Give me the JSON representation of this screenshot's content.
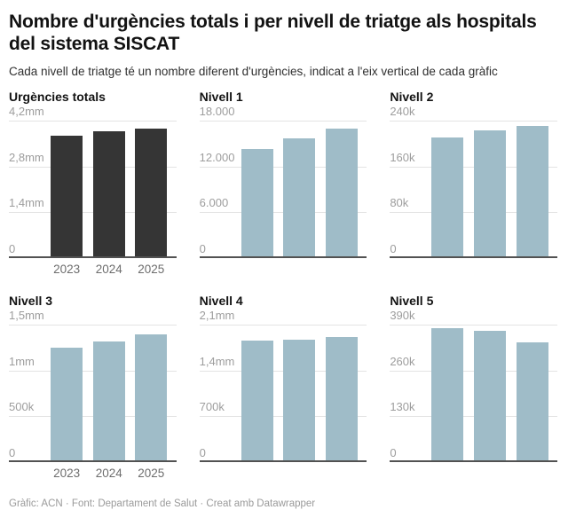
{
  "header": {
    "title": "Nombre d'urgències totals i per nivell de triatge als hospitals del sistema SISCAT",
    "subtitle": "Cada nivell de triatge té un nombre diferent d'urgències, indicat a l'eix vertical de cada gràfic"
  },
  "footer": {
    "credit": "Gràfic: ACN · Font: Departament de Salut · Creat amb Datawrapper"
  },
  "colors": {
    "dark_bar": "#353535",
    "light_bar": "#9fbcc8",
    "gridline": "#e3e3e3",
    "baseline": "#525252",
    "tick_label": "#9d9d9d",
    "year_label": "#6d6d6d"
  },
  "chart_data": [
    {
      "type": "bar",
      "title": "Urgències totals",
      "categories": [
        "2023",
        "2024",
        "2025"
      ],
      "values": [
        3730000,
        3870000,
        3940000
      ],
      "ylim": [
        0,
        4200000
      ],
      "yticks": [
        "4,2mm",
        "2,8mm",
        "1,4mm",
        "0"
      ],
      "bar_color": "#353535",
      "show_x_labels": true,
      "grid": true,
      "legend": "none"
    },
    {
      "type": "bar",
      "title": "Nivell 1",
      "categories": [
        "2023",
        "2024",
        "2025"
      ],
      "values": [
        14200,
        15700,
        16900
      ],
      "ylim": [
        0,
        18000
      ],
      "yticks": [
        "18.000",
        "12.000",
        "6.000",
        "0"
      ],
      "bar_color": "#9fbcc8",
      "show_x_labels": false,
      "grid": true,
      "legend": "none"
    },
    {
      "type": "bar",
      "title": "Nivell 2",
      "categories": [
        "2023",
        "2024",
        "2025"
      ],
      "values": [
        211000,
        223000,
        231000
      ],
      "ylim": [
        0,
        240000
      ],
      "yticks": [
        "240k",
        "160k",
        "80k",
        "0"
      ],
      "bar_color": "#9fbcc8",
      "show_x_labels": false,
      "grid": true,
      "legend": "none"
    },
    {
      "type": "bar",
      "title": "Nivell 3",
      "categories": [
        "2023",
        "2024",
        "2025"
      ],
      "values": [
        1250000,
        1310000,
        1390000
      ],
      "ylim": [
        0,
        1500000
      ],
      "yticks": [
        "1,5mm",
        "1mm",
        "500k",
        "0"
      ],
      "bar_color": "#9fbcc8",
      "show_x_labels": true,
      "grid": true,
      "legend": "none"
    },
    {
      "type": "bar",
      "title": "Nivell 4",
      "categories": [
        "2023",
        "2024",
        "2025"
      ],
      "values": [
        1850000,
        1870000,
        1910000
      ],
      "ylim": [
        0,
        2100000
      ],
      "yticks": [
        "2,1mm",
        "1,4mm",
        "700k",
        "0"
      ],
      "bar_color": "#9fbcc8",
      "show_x_labels": false,
      "grid": true,
      "legend": "none"
    },
    {
      "type": "bar",
      "title": "Nivell 5",
      "categories": [
        "2023",
        "2024",
        "2025"
      ],
      "values": [
        381000,
        373000,
        338000
      ],
      "ylim": [
        0,
        390000
      ],
      "yticks": [
        "390k",
        "260k",
        "130k",
        "0"
      ],
      "bar_color": "#9fbcc8",
      "show_x_labels": false,
      "grid": true,
      "legend": "none"
    }
  ]
}
